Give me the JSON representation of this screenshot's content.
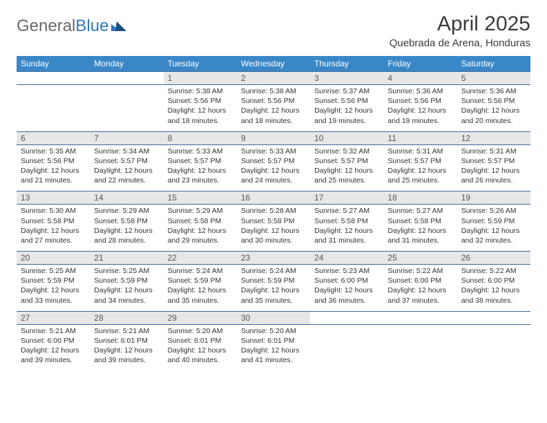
{
  "brand": {
    "part1": "General",
    "part2": "Blue"
  },
  "title": "April 2025",
  "location": "Quebrada de Arena, Honduras",
  "colors": {
    "header_bg": "#3a87c8",
    "header_text": "#ffffff",
    "daynum_bg": "#e7e7e7",
    "border": "#3a6a9a",
    "text": "#333333",
    "logo_gray": "#6a6a6a",
    "logo_blue": "#2f78bd",
    "background": "#ffffff"
  },
  "columns": [
    "Sunday",
    "Monday",
    "Tuesday",
    "Wednesday",
    "Thursday",
    "Friday",
    "Saturday"
  ],
  "weeks": [
    [
      null,
      null,
      {
        "n": "1",
        "sunrise": "5:38 AM",
        "sunset": "5:56 PM",
        "daylight": "12 hours and 18 minutes."
      },
      {
        "n": "2",
        "sunrise": "5:38 AM",
        "sunset": "5:56 PM",
        "daylight": "12 hours and 18 minutes."
      },
      {
        "n": "3",
        "sunrise": "5:37 AM",
        "sunset": "5:56 PM",
        "daylight": "12 hours and 19 minutes."
      },
      {
        "n": "4",
        "sunrise": "5:36 AM",
        "sunset": "5:56 PM",
        "daylight": "12 hours and 19 minutes."
      },
      {
        "n": "5",
        "sunrise": "5:36 AM",
        "sunset": "5:56 PM",
        "daylight": "12 hours and 20 minutes."
      }
    ],
    [
      {
        "n": "6",
        "sunrise": "5:35 AM",
        "sunset": "5:56 PM",
        "daylight": "12 hours and 21 minutes."
      },
      {
        "n": "7",
        "sunrise": "5:34 AM",
        "sunset": "5:57 PM",
        "daylight": "12 hours and 22 minutes."
      },
      {
        "n": "8",
        "sunrise": "5:33 AM",
        "sunset": "5:57 PM",
        "daylight": "12 hours and 23 minutes."
      },
      {
        "n": "9",
        "sunrise": "5:33 AM",
        "sunset": "5:57 PM",
        "daylight": "12 hours and 24 minutes."
      },
      {
        "n": "10",
        "sunrise": "5:32 AM",
        "sunset": "5:57 PM",
        "daylight": "12 hours and 25 minutes."
      },
      {
        "n": "11",
        "sunrise": "5:31 AM",
        "sunset": "5:57 PM",
        "daylight": "12 hours and 25 minutes."
      },
      {
        "n": "12",
        "sunrise": "5:31 AM",
        "sunset": "5:57 PM",
        "daylight": "12 hours and 26 minutes."
      }
    ],
    [
      {
        "n": "13",
        "sunrise": "5:30 AM",
        "sunset": "5:58 PM",
        "daylight": "12 hours and 27 minutes."
      },
      {
        "n": "14",
        "sunrise": "5:29 AM",
        "sunset": "5:58 PM",
        "daylight": "12 hours and 28 minutes."
      },
      {
        "n": "15",
        "sunrise": "5:29 AM",
        "sunset": "5:58 PM",
        "daylight": "12 hours and 29 minutes."
      },
      {
        "n": "16",
        "sunrise": "5:28 AM",
        "sunset": "5:58 PM",
        "daylight": "12 hours and 30 minutes."
      },
      {
        "n": "17",
        "sunrise": "5:27 AM",
        "sunset": "5:58 PM",
        "daylight": "12 hours and 31 minutes."
      },
      {
        "n": "18",
        "sunrise": "5:27 AM",
        "sunset": "5:58 PM",
        "daylight": "12 hours and 31 minutes."
      },
      {
        "n": "19",
        "sunrise": "5:26 AM",
        "sunset": "5:59 PM",
        "daylight": "12 hours and 32 minutes."
      }
    ],
    [
      {
        "n": "20",
        "sunrise": "5:25 AM",
        "sunset": "5:59 PM",
        "daylight": "12 hours and 33 minutes."
      },
      {
        "n": "21",
        "sunrise": "5:25 AM",
        "sunset": "5:59 PM",
        "daylight": "12 hours and 34 minutes."
      },
      {
        "n": "22",
        "sunrise": "5:24 AM",
        "sunset": "5:59 PM",
        "daylight": "12 hours and 35 minutes."
      },
      {
        "n": "23",
        "sunrise": "5:24 AM",
        "sunset": "5:59 PM",
        "daylight": "12 hours and 35 minutes."
      },
      {
        "n": "24",
        "sunrise": "5:23 AM",
        "sunset": "6:00 PM",
        "daylight": "12 hours and 36 minutes."
      },
      {
        "n": "25",
        "sunrise": "5:22 AM",
        "sunset": "6:00 PM",
        "daylight": "12 hours and 37 minutes."
      },
      {
        "n": "26",
        "sunrise": "5:22 AM",
        "sunset": "6:00 PM",
        "daylight": "12 hours and 38 minutes."
      }
    ],
    [
      {
        "n": "27",
        "sunrise": "5:21 AM",
        "sunset": "6:00 PM",
        "daylight": "12 hours and 39 minutes."
      },
      {
        "n": "28",
        "sunrise": "5:21 AM",
        "sunset": "6:01 PM",
        "daylight": "12 hours and 39 minutes."
      },
      {
        "n": "29",
        "sunrise": "5:20 AM",
        "sunset": "6:01 PM",
        "daylight": "12 hours and 40 minutes."
      },
      {
        "n": "30",
        "sunrise": "5:20 AM",
        "sunset": "6:01 PM",
        "daylight": "12 hours and 41 minutes."
      },
      null,
      null,
      null
    ]
  ],
  "labels": {
    "sunrise": "Sunrise:",
    "sunset": "Sunset:",
    "daylight": "Daylight:"
  }
}
